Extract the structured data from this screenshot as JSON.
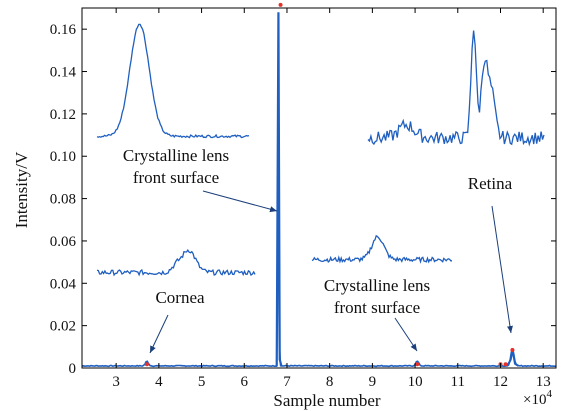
{
  "chart_data": {
    "type": "line",
    "title": "",
    "xlabel": "Sample number",
    "ylabel": "Intensity/V",
    "x_multiplier_label": "×10",
    "x_multiplier_exp": "4",
    "xlim": [
      2.2,
      13.3
    ],
    "ylim": [
      0,
      0.17
    ],
    "xticks": [
      3,
      4,
      5,
      6,
      7,
      8,
      9,
      10,
      11,
      12,
      13
    ],
    "yticks": [
      0,
      0.02,
      0.04,
      0.06,
      0.08,
      0.1,
      0.12,
      0.14,
      0.16
    ],
    "ytick_labels": [
      "0",
      "0.02",
      "0.04",
      "0.06",
      "0.08",
      "0.10",
      "0.12",
      "0.14",
      "0.16"
    ],
    "grid": false,
    "line_color": "#1f5fbf",
    "marker_color": "#e8302a",
    "baseline": 0.001,
    "peaks": [
      {
        "name": "cornea",
        "x": 3.72,
        "y": 0.0022
      },
      {
        "name": "lens-front",
        "x": 6.8,
        "y": 0.168
      },
      {
        "name": "lens-back",
        "x": 10.05,
        "y": 0.0022
      },
      {
        "name": "retina",
        "x": 12.28,
        "y": 0.0085
      }
    ],
    "markers": [
      {
        "x": 3.72,
        "y": 0.0018
      },
      {
        "x": 6.85,
        "y": 0.1715
      },
      {
        "x": 10.05,
        "y": 0.0018
      },
      {
        "x": 12.0,
        "y": 0.0018
      },
      {
        "x": 12.12,
        "y": 0.0018
      },
      {
        "x": 12.28,
        "y": 0.0085
      }
    ],
    "annotations": [
      {
        "id": "lens-front",
        "lines": [
          "Crystalline lens",
          "front surface"
        ]
      },
      {
        "id": "retina",
        "lines": [
          "Retina"
        ]
      },
      {
        "id": "cornea",
        "lines": [
          "Cornea"
        ]
      },
      {
        "id": "lens-back",
        "lines": [
          "Crystalline lens",
          "front surface"
        ]
      }
    ]
  }
}
